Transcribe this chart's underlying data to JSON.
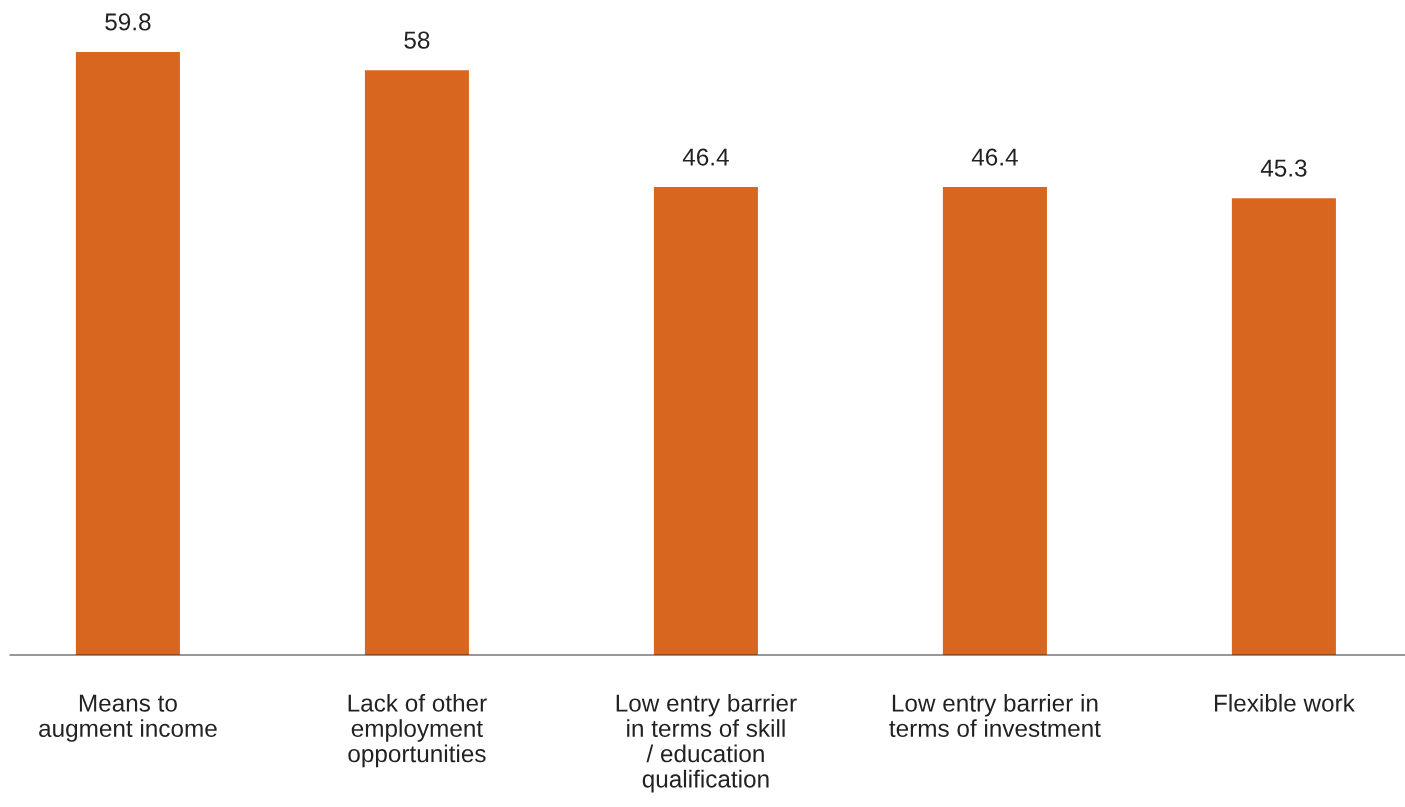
{
  "chart_data": {
    "type": "bar",
    "categories": [
      "Means to\naugment income",
      "Lack of other\nemployment\nopportunities",
      "Low entry barrier\nin terms of skill\n/ education\nqualification",
      "Low entry barrier in\nterms of investment",
      "Flexible work"
    ],
    "values": [
      59.8,
      58,
      46.4,
      46.4,
      45.3
    ],
    "color": "#d9661f",
    "data_labels": true,
    "grid": false,
    "legend": false
  }
}
